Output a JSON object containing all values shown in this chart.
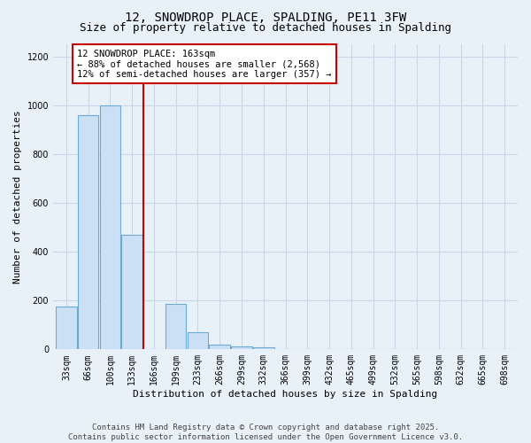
{
  "title_line1": "12, SNOWDROP PLACE, SPALDING, PE11 3FW",
  "title_line2": "Size of property relative to detached houses in Spalding",
  "xlabel": "Distribution of detached houses by size in Spalding",
  "ylabel": "Number of detached properties",
  "categories": [
    "33sqm",
    "66sqm",
    "100sqm",
    "133sqm",
    "166sqm",
    "199sqm",
    "233sqm",
    "266sqm",
    "299sqm",
    "332sqm",
    "366sqm",
    "399sqm",
    "432sqm",
    "465sqm",
    "499sqm",
    "532sqm",
    "565sqm",
    "598sqm",
    "632sqm",
    "665sqm",
    "698sqm"
  ],
  "values": [
    175,
    960,
    1000,
    470,
    0,
    185,
    70,
    20,
    13,
    8,
    0,
    0,
    0,
    0,
    0,
    0,
    0,
    0,
    0,
    0,
    0
  ],
  "bar_color": "#cce0f5",
  "bar_edge_color": "#6aaad4",
  "vline_color": "#cc0000",
  "annotation_text": "12 SNOWDROP PLACE: 163sqm\n← 88% of detached houses are smaller (2,568)\n12% of semi-detached houses are larger (357) →",
  "annotation_box_color": "#ffffff",
  "annotation_box_edge": "#cc0000",
  "ylim": [
    0,
    1250
  ],
  "yticks": [
    0,
    200,
    400,
    600,
    800,
    1000,
    1200
  ],
  "grid_color": "#c8d8e8",
  "background_color": "#e8f0f8",
  "footer": "Contains HM Land Registry data © Crown copyright and database right 2025.\nContains public sector information licensed under the Open Government Licence v3.0.",
  "title_fontsize": 10,
  "subtitle_fontsize": 9,
  "axis_label_fontsize": 8,
  "tick_fontsize": 7,
  "annotation_fontsize": 7.5,
  "footer_fontsize": 6.5
}
